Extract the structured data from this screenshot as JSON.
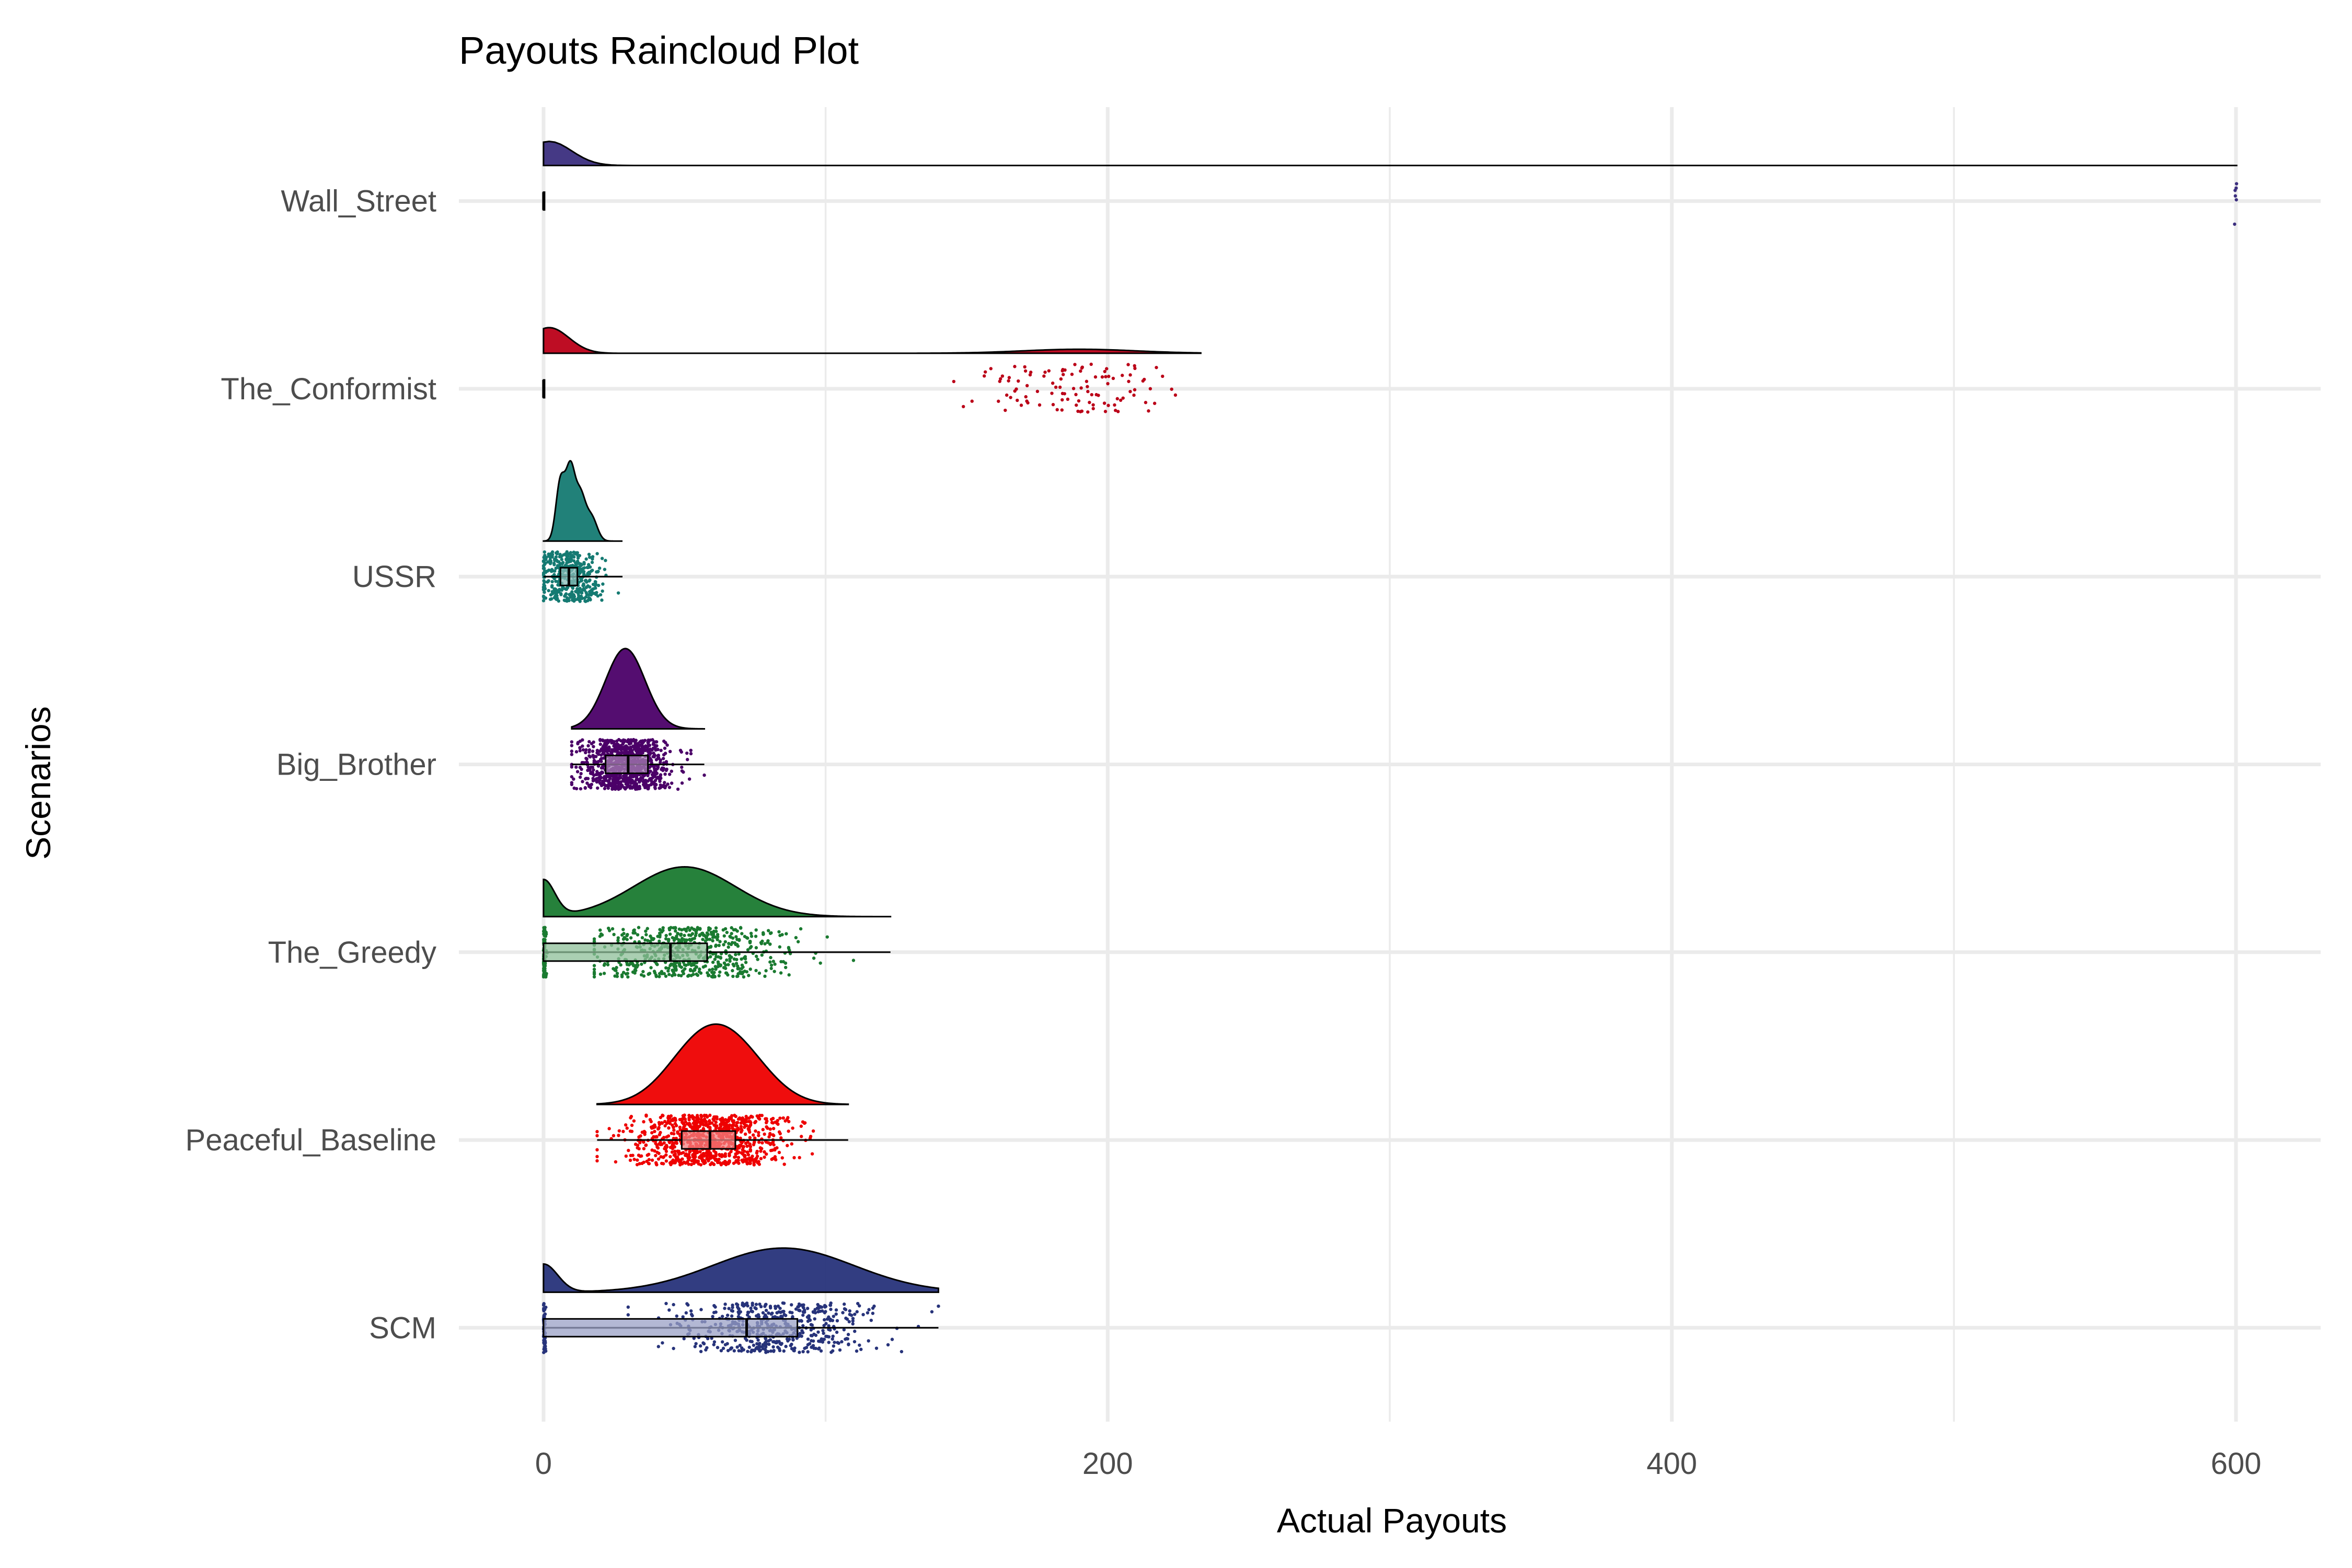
{
  "chart_data": {
    "type": "raincloud",
    "title": "Payouts Raincloud Plot",
    "xlabel": "Actual Payouts",
    "ylabel": "Scenarios",
    "xlim": [
      -30,
      630
    ],
    "x_ticks": [
      0,
      200,
      400,
      600
    ],
    "grid": true,
    "legend": "none",
    "categories": [
      "SCM",
      "Peaceful_Baseline",
      "The_Greedy",
      "Big_Brother",
      "USSR",
      "The_Conformist",
      "Wall_Street"
    ],
    "series": [
      {
        "name": "SCM",
        "color": "#27337a",
        "box_fill": "#9aa0c6",
        "min": 0,
        "q1": 0,
        "median": 72,
        "q3": 90,
        "max": 140,
        "n_points": 600,
        "zero_share": 0.12,
        "cluster": {
          "mean": 82,
          "sd": 17,
          "lo": 30,
          "hi": 140
        },
        "density_peaks": [
          {
            "x": 0,
            "h": 0.35,
            "w": 5
          },
          {
            "x": 85,
            "h": 0.55,
            "w": 25
          }
        ]
      },
      {
        "name": "Peaceful_Baseline",
        "color": "#ee0000",
        "box_fill": "#f28080",
        "min": 19,
        "q1": 49,
        "median": 59,
        "q3": 68,
        "max": 108,
        "n_points": 900,
        "zero_share": 0,
        "cluster": {
          "mean": 58,
          "sd": 14,
          "lo": 19,
          "hi": 108
        },
        "density_peaks": [
          {
            "x": 55,
            "h": 1.0,
            "w": 12
          },
          {
            "x": 69,
            "h": 0.85,
            "w": 12
          }
        ]
      },
      {
        "name": "The_Greedy",
        "color": "#1a7a30",
        "box_fill": "#8dbf98",
        "min": 0,
        "q1": 0,
        "median": 45,
        "q3": 58,
        "max": 123,
        "n_points": 700,
        "zero_share": 0.15,
        "cluster": {
          "mean": 52,
          "sd": 17,
          "lo": 18,
          "hi": 123
        },
        "density_peaks": [
          {
            "x": 0,
            "h": 0.45,
            "w": 4
          },
          {
            "x": 50,
            "h": 0.62,
            "w": 18
          }
        ]
      },
      {
        "name": "Big_Brother",
        "color": "#4b0068",
        "box_fill": "#a57fb3",
        "min": 10,
        "q1": 22,
        "median": 30,
        "q3": 37,
        "max": 57,
        "n_points": 900,
        "zero_share": 0,
        "cluster": {
          "mean": 29,
          "sd": 8,
          "lo": 10,
          "hi": 57
        },
        "density_peaks": [
          {
            "x": 29,
            "h": 1.0,
            "w": 7
          }
        ]
      },
      {
        "name": "USSR",
        "color": "#157a72",
        "box_fill": "#8abcb8",
        "min": 0,
        "q1": 6,
        "median": 9,
        "q3": 12,
        "max": 28,
        "n_points": 400,
        "zero_share": 0.05,
        "cluster": {
          "mean": 10,
          "sd": 5,
          "lo": 0,
          "hi": 28
        },
        "density_peaks": [
          {
            "x": 6,
            "h": 1.0,
            "w": 1.6
          },
          {
            "x": 9.5,
            "h": 1.15,
            "w": 1.6
          },
          {
            "x": 13,
            "h": 0.75,
            "w": 1.8
          },
          {
            "x": 17,
            "h": 0.4,
            "w": 2
          }
        ]
      },
      {
        "name": "The_Conformist",
        "color": "#bb0018",
        "box_fill": "#dd7f8b",
        "min": 0,
        "q1": 0,
        "median": 0,
        "q3": 0,
        "max": 0,
        "n_points": 110,
        "zero_share": 0,
        "cluster": {
          "mean": 188,
          "sd": 18,
          "lo": 145,
          "hi": 233
        },
        "density_peaks": [
          {
            "x": 2,
            "h": 0.32,
            "w": 7
          },
          {
            "x": 190,
            "h": 0.05,
            "w": 20
          }
        ]
      },
      {
        "name": "Wall_Street",
        "color": "#3b2e7e",
        "box_fill": "#9d96be",
        "min": 0,
        "q1": 0,
        "median": 0,
        "q3": 0,
        "max": 0,
        "n_points": 6,
        "zero_share": 0,
        "cluster": {
          "mean": 600,
          "sd": 0.4,
          "lo": 599.5,
          "hi": 600.5
        },
        "density_peaks": [
          {
            "x": 2,
            "h": 0.3,
            "w": 8
          }
        ]
      }
    ]
  }
}
